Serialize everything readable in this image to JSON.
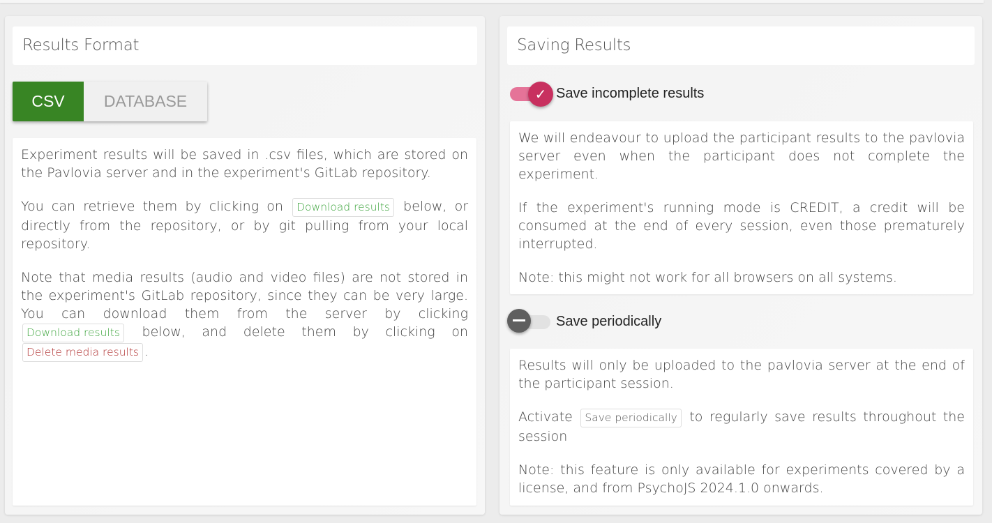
{
  "left": {
    "title": "Results Format",
    "format_options": [
      "CSV",
      "DATABASE"
    ],
    "selected": "CSV",
    "p1": "Experiment results will be saved in .csv files, which are stored on the Pavlovia server and in the experiment's GitLab repository.",
    "p2_a": "You can retrieve them by clicking on",
    "p2_chip": "Download results",
    "p2_b": "below, or directly from the repository, or by git pulling from your local repository.",
    "p3_a": "Note that media results (audio and video files) are not stored in the experiment's GitLab repository, since they can be very large. You can download them from the server by clicking",
    "p3_chip1": "Download results",
    "p3_b": "below, and delete them by clicking on",
    "p3_chip2": "Delete media results",
    "p3_c": "."
  },
  "right": {
    "title": "Saving Results",
    "toggle1": {
      "label": "Save incomplete results",
      "on": true,
      "color": "#c8305f"
    },
    "box1": [
      "We will endeavour to upload the participant results to the pavlovia server even when the participant does not complete the experiment.",
      "If the experiment's running mode is CREDIT, a credit will be consumed at the end of every session, even those prematurely interrupted.",
      "Note: this might not work for all browsers on all systems."
    ],
    "toggle2": {
      "label": "Save periodically",
      "on": false
    },
    "box2": {
      "p1": "Results will only be uploaded to the pavlovia server at the end of the participant session.",
      "p2_a": "Activate",
      "p2_chip": "Save periodically",
      "p2_b": "to regularly save results throughout the session",
      "p3": "Note: this feature is only available for experiments covered by a license, and from PsychoJS 2024.1.0 onwards."
    }
  }
}
